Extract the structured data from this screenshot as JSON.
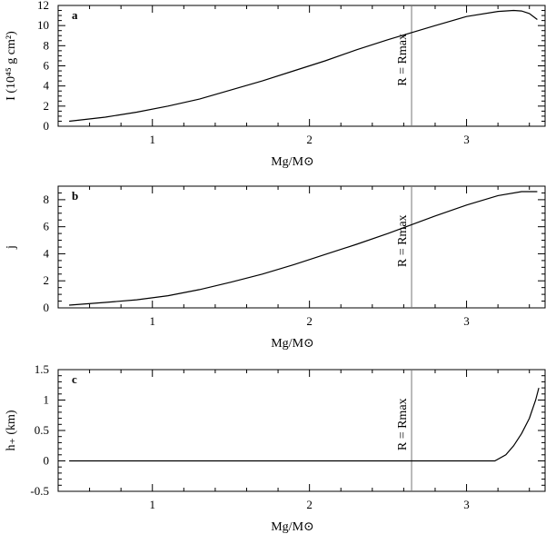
{
  "chart_data": [
    {
      "type": "line",
      "panel": "a",
      "title": "",
      "xlabel": "Mg/M⊙",
      "ylabel": "I (10⁴⁵ g cm²)",
      "xlim": [
        0.4,
        3.5
      ],
      "ylim": [
        0,
        12
      ],
      "xticks": [
        1,
        2,
        3
      ],
      "xtick_labels": [
        "1",
        "2",
        "3"
      ],
      "yticks": [
        0,
        2,
        4,
        6,
        8,
        10,
        12
      ],
      "ytick_labels": [
        "0",
        "2",
        "4",
        "6",
        "8",
        "10",
        "12"
      ],
      "grid": false,
      "vline": {
        "x": 2.65,
        "label": "R = Rmax"
      },
      "x": [
        0.47,
        0.7,
        0.9,
        1.1,
        1.3,
        1.5,
        1.7,
        1.9,
        2.1,
        2.3,
        2.5,
        2.65,
        2.8,
        3.0,
        3.2,
        3.3,
        3.35,
        3.4,
        3.45
      ],
      "y": [
        0.5,
        0.9,
        1.4,
        2.0,
        2.7,
        3.6,
        4.5,
        5.5,
        6.5,
        7.6,
        8.6,
        9.3,
        10.0,
        10.9,
        11.4,
        11.5,
        11.45,
        11.2,
        10.6
      ]
    },
    {
      "type": "line",
      "panel": "b",
      "title": "",
      "xlabel": "Mg/M⊙",
      "ylabel": "j",
      "xlim": [
        0.4,
        3.5
      ],
      "ylim": [
        0,
        9
      ],
      "xticks": [
        1,
        2,
        3
      ],
      "xtick_labels": [
        "1",
        "2",
        "3"
      ],
      "yticks": [
        0,
        2,
        4,
        6,
        8
      ],
      "ytick_labels": [
        "0",
        "2",
        "4",
        "6",
        "8"
      ],
      "grid": false,
      "vline": {
        "x": 2.65,
        "label": "R = Rmax"
      },
      "x": [
        0.47,
        0.7,
        0.9,
        1.1,
        1.3,
        1.5,
        1.7,
        1.9,
        2.1,
        2.3,
        2.5,
        2.65,
        2.8,
        3.0,
        3.2,
        3.35,
        3.45
      ],
      "y": [
        0.2,
        0.4,
        0.6,
        0.9,
        1.35,
        1.9,
        2.5,
        3.2,
        3.95,
        4.7,
        5.5,
        6.15,
        6.8,
        7.6,
        8.3,
        8.6,
        8.6
      ]
    },
    {
      "type": "line",
      "panel": "c",
      "title": "",
      "xlabel": "Mg/M⊙",
      "ylabel": "h₊ (km)",
      "xlim": [
        0.4,
        3.5
      ],
      "ylim": [
        -0.5,
        1.5
      ],
      "xticks": [
        1,
        2,
        3
      ],
      "xtick_labels": [
        "1",
        "2",
        "3"
      ],
      "yticks": [
        -0.5,
        0,
        0.5,
        1,
        1.5
      ],
      "ytick_labels": [
        "-0.5",
        "0",
        "0.5",
        "1",
        "1.5"
      ],
      "grid": false,
      "vline": {
        "x": 2.65,
        "label": "R = Rmax"
      },
      "x": [
        0.47,
        1.0,
        2.0,
        3.0,
        3.18,
        3.25,
        3.3,
        3.35,
        3.4,
        3.44,
        3.46
      ],
      "y": [
        0.0,
        0.0,
        0.0,
        0.0,
        0.0,
        0.1,
        0.25,
        0.45,
        0.7,
        1.0,
        1.2
      ]
    }
  ]
}
